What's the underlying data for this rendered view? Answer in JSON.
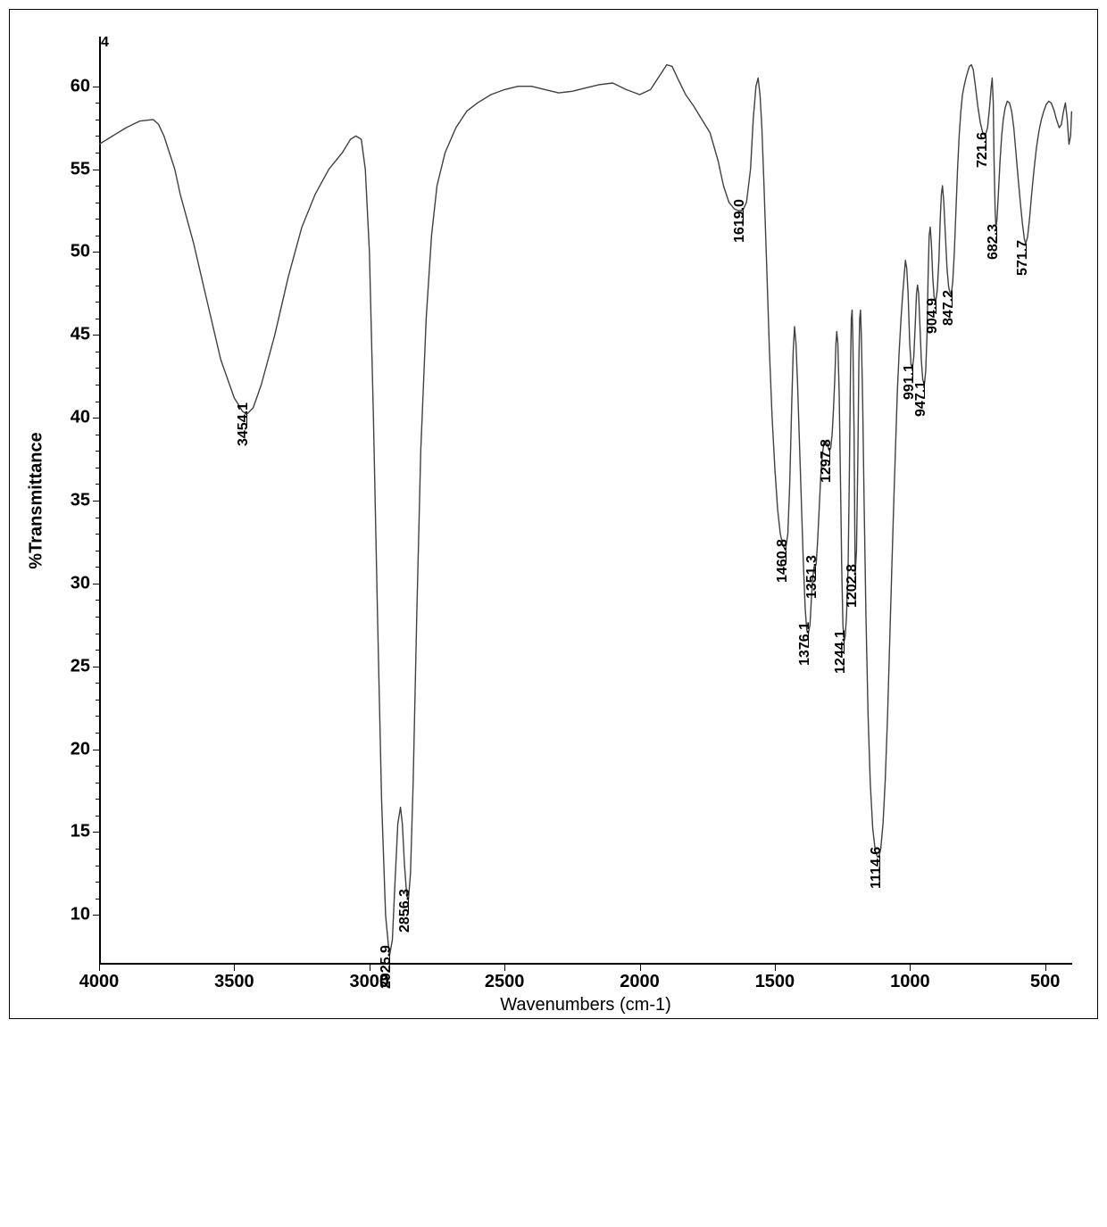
{
  "chart": {
    "type": "line",
    "background_color": "#ffffff",
    "trace_color": "#404040",
    "axis_color": "#000000",
    "x_axis": {
      "label": "Wavenumbers (cm-1)",
      "min": 400,
      "max": 4000,
      "reversed": true,
      "ticks": [
        4000,
        3500,
        3000,
        2500,
        2000,
        1500,
        1000,
        500
      ],
      "label_fontsize": 20
    },
    "y_axis": {
      "label": "%Transmittance",
      "min": 7,
      "max": 63,
      "ticks": [
        10,
        15,
        20,
        25,
        30,
        35,
        40,
        45,
        50,
        55,
        60
      ],
      "label_fontsize": 20,
      "label_fontweight": "bold"
    },
    "title_marker": "4",
    "peaks": [
      {
        "wavenumber": 3454.1,
        "transmittance": 40.2,
        "label": "3454.1"
      },
      {
        "wavenumber": 2925.9,
        "transmittance": 7.5,
        "label": "2925.9"
      },
      {
        "wavenumber": 2856.3,
        "transmittance": 10.9,
        "label": "2856.3"
      },
      {
        "wavenumber": 1619.0,
        "transmittance": 52.5,
        "label": "1619.0"
      },
      {
        "wavenumber": 1460.8,
        "transmittance": 32.0,
        "label": "1460.8"
      },
      {
        "wavenumber": 1376.1,
        "transmittance": 27.0,
        "label": "1376.1"
      },
      {
        "wavenumber": 1351.3,
        "transmittance": 31.0,
        "label": "1351.3"
      },
      {
        "wavenumber": 1297.8,
        "transmittance": 38.0,
        "label": "1297.8"
      },
      {
        "wavenumber": 1244.1,
        "transmittance": 26.5,
        "label": "1244.1"
      },
      {
        "wavenumber": 1202.8,
        "transmittance": 30.5,
        "label": "1202.8"
      },
      {
        "wavenumber": 1114.6,
        "transmittance": 13.5,
        "label": "1114.6"
      },
      {
        "wavenumber": 991.1,
        "transmittance": 43.0,
        "label": "991.1"
      },
      {
        "wavenumber": 947.1,
        "transmittance": 42.0,
        "label": "947.1"
      },
      {
        "wavenumber": 904.9,
        "transmittance": 47.0,
        "label": "904.9"
      },
      {
        "wavenumber": 847.2,
        "transmittance": 47.5,
        "label": "847.2"
      },
      {
        "wavenumber": 721.6,
        "transmittance": 57.0,
        "label": "721.6"
      },
      {
        "wavenumber": 682.3,
        "transmittance": 51.5,
        "label": "682.3"
      },
      {
        "wavenumber": 571.7,
        "transmittance": 50.5,
        "label": "571.7"
      }
    ],
    "spectrum_points": [
      [
        4000,
        56.5
      ],
      [
        3950,
        57.0
      ],
      [
        3900,
        57.5
      ],
      [
        3850,
        57.9
      ],
      [
        3800,
        58.0
      ],
      [
        3780,
        57.7
      ],
      [
        3760,
        57.0
      ],
      [
        3740,
        56.0
      ],
      [
        3720,
        55.0
      ],
      [
        3700,
        53.5
      ],
      [
        3650,
        50.5
      ],
      [
        3600,
        47.0
      ],
      [
        3550,
        43.5
      ],
      [
        3500,
        41.2
      ],
      [
        3470,
        40.4
      ],
      [
        3454,
        40.2
      ],
      [
        3430,
        40.6
      ],
      [
        3400,
        42.0
      ],
      [
        3350,
        45.0
      ],
      [
        3300,
        48.5
      ],
      [
        3250,
        51.5
      ],
      [
        3200,
        53.5
      ],
      [
        3150,
        55.0
      ],
      [
        3100,
        56.0
      ],
      [
        3070,
        56.8
      ],
      [
        3050,
        57.0
      ],
      [
        3030,
        56.8
      ],
      [
        3015,
        55.0
      ],
      [
        3000,
        50.0
      ],
      [
        2985,
        40.0
      ],
      [
        2970,
        28.0
      ],
      [
        2955,
        17.0
      ],
      [
        2940,
        10.0
      ],
      [
        2926,
        7.5
      ],
      [
        2915,
        8.5
      ],
      [
        2905,
        12.0
      ],
      [
        2895,
        15.5
      ],
      [
        2885,
        16.5
      ],
      [
        2878,
        15.5
      ],
      [
        2870,
        13.0
      ],
      [
        2862,
        11.2
      ],
      [
        2856,
        10.9
      ],
      [
        2848,
        12.5
      ],
      [
        2838,
        18.0
      ],
      [
        2825,
        28.0
      ],
      [
        2810,
        38.0
      ],
      [
        2790,
        46.0
      ],
      [
        2770,
        51.0
      ],
      [
        2750,
        54.0
      ],
      [
        2720,
        56.0
      ],
      [
        2680,
        57.5
      ],
      [
        2640,
        58.5
      ],
      [
        2600,
        59.0
      ],
      [
        2550,
        59.5
      ],
      [
        2500,
        59.8
      ],
      [
        2450,
        60.0
      ],
      [
        2400,
        60.0
      ],
      [
        2350,
        59.8
      ],
      [
        2300,
        59.6
      ],
      [
        2250,
        59.7
      ],
      [
        2200,
        59.9
      ],
      [
        2150,
        60.1
      ],
      [
        2100,
        60.2
      ],
      [
        2050,
        59.8
      ],
      [
        2000,
        59.5
      ],
      [
        1960,
        59.8
      ],
      [
        1920,
        60.8
      ],
      [
        1900,
        61.3
      ],
      [
        1880,
        61.2
      ],
      [
        1860,
        60.5
      ],
      [
        1830,
        59.5
      ],
      [
        1800,
        58.8
      ],
      [
        1770,
        58.0
      ],
      [
        1740,
        57.2
      ],
      [
        1710,
        55.5
      ],
      [
        1690,
        54.0
      ],
      [
        1670,
        53.0
      ],
      [
        1650,
        52.6
      ],
      [
        1635,
        52.5
      ],
      [
        1619,
        52.5
      ],
      [
        1605,
        53.0
      ],
      [
        1590,
        55.0
      ],
      [
        1580,
        58.0
      ],
      [
        1570,
        60.0
      ],
      [
        1562,
        60.5
      ],
      [
        1555,
        59.5
      ],
      [
        1548,
        57.5
      ],
      [
        1540,
        54.0
      ],
      [
        1530,
        49.0
      ],
      [
        1520,
        44.0
      ],
      [
        1510,
        40.0
      ],
      [
        1500,
        37.0
      ],
      [
        1490,
        34.5
      ],
      [
        1480,
        33.0
      ],
      [
        1470,
        32.3
      ],
      [
        1461,
        32.0
      ],
      [
        1452,
        33.0
      ],
      [
        1445,
        36.0
      ],
      [
        1438,
        40.5
      ],
      [
        1432,
        44.0
      ],
      [
        1427,
        45.5
      ],
      [
        1422,
        44.5
      ],
      [
        1416,
        42.0
      ],
      [
        1410,
        39.0
      ],
      [
        1402,
        35.0
      ],
      [
        1395,
        31.5
      ],
      [
        1388,
        28.5
      ],
      [
        1382,
        27.2
      ],
      [
        1376,
        27.0
      ],
      [
        1370,
        27.5
      ],
      [
        1365,
        29.0
      ],
      [
        1360,
        30.3
      ],
      [
        1355,
        31.0
      ],
      [
        1351,
        31.0
      ],
      [
        1347,
        31.2
      ],
      [
        1342,
        32.5
      ],
      [
        1336,
        34.5
      ],
      [
        1330,
        36.5
      ],
      [
        1324,
        37.8
      ],
      [
        1318,
        38.5
      ],
      [
        1312,
        38.6
      ],
      [
        1306,
        38.4
      ],
      [
        1300,
        38.1
      ],
      [
        1298,
        38.0
      ],
      [
        1293,
        38.2
      ],
      [
        1288,
        39.0
      ],
      [
        1283,
        40.5
      ],
      [
        1278,
        42.5
      ],
      [
        1274,
        44.5
      ],
      [
        1271,
        45.2
      ],
      [
        1267,
        44.5
      ],
      [
        1262,
        41.5
      ],
      [
        1257,
        36.0
      ],
      [
        1252,
        30.5
      ],
      [
        1248,
        27.5
      ],
      [
        1244,
        26.5
      ],
      [
        1240,
        26.8
      ],
      [
        1235,
        28.0
      ],
      [
        1229,
        31.0
      ],
      [
        1224,
        37.0
      ],
      [
        1220,
        43.0
      ],
      [
        1217,
        46.0
      ],
      [
        1214,
        46.5
      ],
      [
        1211,
        44.5
      ],
      [
        1207,
        39.0
      ],
      [
        1203,
        30.5
      ],
      [
        1198,
        32.0
      ],
      [
        1193,
        37.5
      ],
      [
        1189,
        43.5
      ],
      [
        1186,
        46.0
      ],
      [
        1183,
        46.5
      ],
      [
        1180,
        45.0
      ],
      [
        1175,
        41.0
      ],
      [
        1170,
        35.0
      ],
      [
        1163,
        28.0
      ],
      [
        1155,
        22.0
      ],
      [
        1147,
        18.0
      ],
      [
        1138,
        15.2
      ],
      [
        1128,
        13.8
      ],
      [
        1120,
        13.5
      ],
      [
        1115,
        13.5
      ],
      [
        1108,
        14.0
      ],
      [
        1100,
        15.5
      ],
      [
        1092,
        18.0
      ],
      [
        1083,
        22.0
      ],
      [
        1075,
        26.5
      ],
      [
        1067,
        31.0
      ],
      [
        1060,
        35.0
      ],
      [
        1053,
        38.5
      ],
      [
        1047,
        41.5
      ],
      [
        1040,
        44.0
      ],
      [
        1033,
        46.0
      ],
      [
        1027,
        47.5
      ],
      [
        1022,
        48.5
      ],
      [
        1017,
        49.5
      ],
      [
        1012,
        49.0
      ],
      [
        1007,
        47.5
      ],
      [
        1001,
        44.5
      ],
      [
        996,
        43.2
      ],
      [
        991,
        43.0
      ],
      [
        986,
        43.7
      ],
      [
        981,
        45.5
      ],
      [
        976,
        47.5
      ],
      [
        972,
        48.0
      ],
      [
        968,
        47.5
      ],
      [
        963,
        45.5
      ],
      [
        958,
        43.5
      ],
      [
        953,
        42.3
      ],
      [
        947,
        42.0
      ],
      [
        942,
        42.8
      ],
      [
        937,
        45.0
      ],
      [
        933,
        48.5
      ],
      [
        929,
        51.0
      ],
      [
        925,
        51.5
      ],
      [
        921,
        50.5
      ],
      [
        916,
        48.5
      ],
      [
        911,
        47.3
      ],
      [
        905,
        47.0
      ],
      [
        899,
        47.7
      ],
      [
        893,
        49.5
      ],
      [
        888,
        52.0
      ],
      [
        884,
        53.5
      ],
      [
        880,
        54.0
      ],
      [
        875,
        53.0
      ],
      [
        869,
        51.0
      ],
      [
        863,
        49.0
      ],
      [
        857,
        47.9
      ],
      [
        851,
        47.5
      ],
      [
        847,
        47.5
      ],
      [
        842,
        48.2
      ],
      [
        836,
        50.0
      ],
      [
        830,
        52.5
      ],
      [
        824,
        55.0
      ],
      [
        818,
        57.0
      ],
      [
        812,
        58.5
      ],
      [
        806,
        59.5
      ],
      [
        800,
        60.0
      ],
      [
        793,
        60.5
      ],
      [
        786,
        60.9
      ],
      [
        780,
        61.2
      ],
      [
        773,
        61.3
      ],
      [
        766,
        61.0
      ],
      [
        758,
        60.0
      ],
      [
        749,
        58.8
      ],
      [
        740,
        57.8
      ],
      [
        731,
        57.2
      ],
      [
        722,
        57.0
      ],
      [
        713,
        57.5
      ],
      [
        706,
        58.7
      ],
      [
        700,
        59.9
      ],
      [
        696,
        60.5
      ],
      [
        692,
        59.0
      ],
      [
        689,
        55.5
      ],
      [
        685,
        52.5
      ],
      [
        682,
        51.5
      ],
      [
        678,
        52.0
      ],
      [
        673,
        53.5
      ],
      [
        667,
        55.5
      ],
      [
        661,
        57.0
      ],
      [
        655,
        58.0
      ],
      [
        648,
        58.7
      ],
      [
        640,
        59.1
      ],
      [
        632,
        59.0
      ],
      [
        624,
        58.5
      ],
      [
        616,
        57.5
      ],
      [
        608,
        56.0
      ],
      [
        600,
        54.5
      ],
      [
        592,
        53.0
      ],
      [
        584,
        51.7
      ],
      [
        577,
        50.8
      ],
      [
        572,
        50.5
      ],
      [
        565,
        50.9
      ],
      [
        558,
        52.0
      ],
      [
        550,
        53.5
      ],
      [
        541,
        55.0
      ],
      [
        532,
        56.3
      ],
      [
        523,
        57.3
      ],
      [
        514,
        58.0
      ],
      [
        505,
        58.5
      ],
      [
        496,
        58.9
      ],
      [
        487,
        59.1
      ],
      [
        478,
        59.0
      ],
      [
        468,
        58.6
      ],
      [
        458,
        58.0
      ],
      [
        448,
        57.5
      ],
      [
        440,
        57.7
      ],
      [
        432,
        58.5
      ],
      [
        425,
        59.0
      ],
      [
        418,
        58.0
      ],
      [
        412,
        56.5
      ],
      [
        406,
        57.0
      ],
      [
        402,
        58.5
      ]
    ]
  }
}
